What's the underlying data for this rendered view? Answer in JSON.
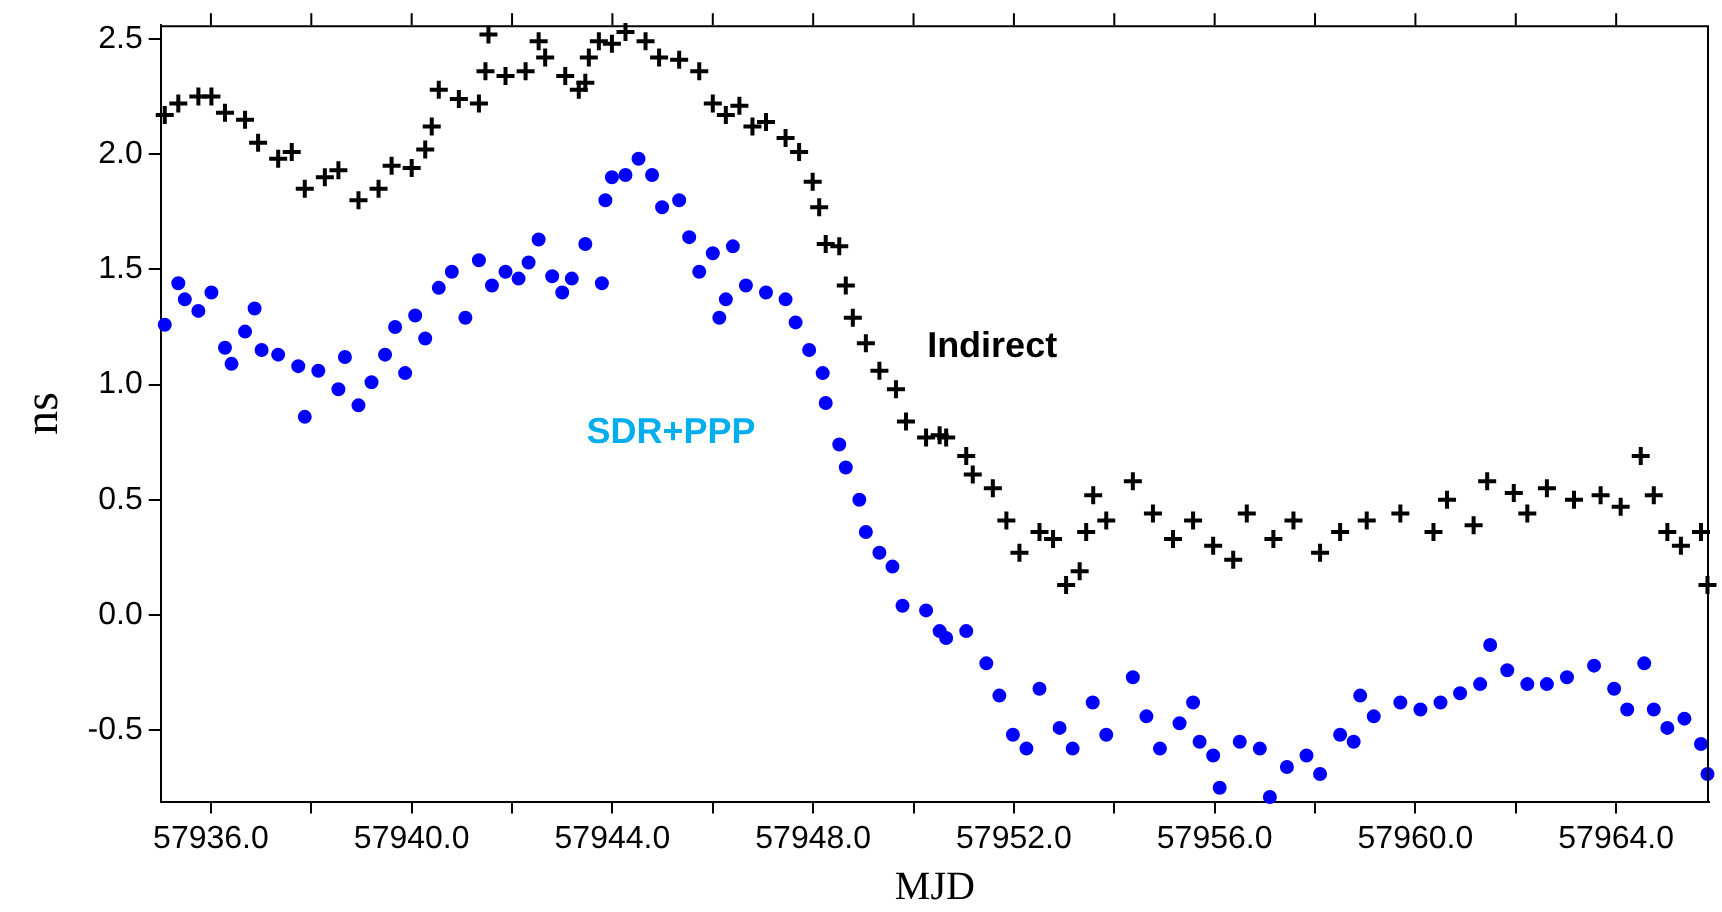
{
  "chart_data": {
    "type": "scatter",
    "xlabel": "MJD",
    "ylabel": "ns",
    "legend": false,
    "grid": false,
    "xlim": [
      57935,
      57965.85
    ],
    "ylim": [
      -0.81,
      2.56
    ],
    "xticks": [
      {
        "value": 57936,
        "label": "57936.0"
      },
      {
        "value": 57938,
        "label": null
      },
      {
        "value": 57940,
        "label": "57940.0"
      },
      {
        "value": 57942,
        "label": null
      },
      {
        "value": 57944,
        "label": "57944.0"
      },
      {
        "value": 57946,
        "label": null
      },
      {
        "value": 57948,
        "label": "57948.0"
      },
      {
        "value": 57950,
        "label": null
      },
      {
        "value": 57952,
        "label": "57952.0"
      },
      {
        "value": 57954,
        "label": null
      },
      {
        "value": 57956,
        "label": "57956.0"
      },
      {
        "value": 57958,
        "label": null
      },
      {
        "value": 57960,
        "label": "57960.0"
      },
      {
        "value": 57962,
        "label": null
      },
      {
        "value": 57964,
        "label": "57964.0"
      }
    ],
    "yticks": [
      2.5,
      {
        "value": 2,
        "label": "2.0"
      },
      1.5,
      {
        "value": 1,
        "label": "1.0"
      },
      0.5,
      {
        "value": 0,
        "label": "0.0"
      },
      -0.5
    ],
    "series": [
      {
        "name": "Indirect",
        "color": "#000000",
        "marker": "cross",
        "x": [
          57935.08,
          57935.35,
          57935.75,
          57936.01,
          57936.28,
          57936.68,
          57936.94,
          57937.34,
          57937.61,
          57937.87,
          57938.27,
          57938.54,
          57938.94,
          57939.34,
          57939.6,
          57940,
          57940.27,
          57940.4,
          57940.54,
          57940.94,
          57941.34,
          57941.47,
          57941.53,
          57941.87,
          57942.27,
          57942.53,
          57942.66,
          57943.06,
          57943.33,
          57943.46,
          57943.53,
          57943.73,
          57943.99,
          57944.26,
          57944.66,
          57944.93,
          57945.33,
          57945.73,
          57946,
          57946.26,
          57946.53,
          57946.79,
          57947.06,
          57947.45,
          57947.72,
          57947.99,
          57948.12,
          57948.25,
          57948.52,
          57948.65,
          57948.79,
          57949.05,
          57949.32,
          57949.65,
          57949.85,
          57950.25,
          57950.52,
          57950.65,
          57951.05,
          57951.18,
          57951.58,
          57951.85,
          57952.11,
          57952.51,
          57952.78,
          57953.04,
          57953.31,
          57953.44,
          57953.58,
          57953.84,
          57954.37,
          57954.77,
          57955.17,
          57955.57,
          57955.97,
          57956.37,
          57956.64,
          57957.17,
          57957.57,
          57958.1,
          57958.5,
          57959.03,
          57959.7,
          57960.36,
          57960.63,
          57961.16,
          57961.43,
          57961.96,
          57962.23,
          57962.62,
          57963.16,
          57963.69,
          57964.09,
          57964.49,
          57964.75,
          57965.02,
          57965.29,
          57965.69,
          57965.82
        ],
        "values": [
          2.17,
          2.22,
          2.25,
          2.25,
          2.18,
          2.15,
          2.05,
          1.98,
          2.01,
          1.85,
          1.9,
          1.93,
          1.8,
          1.85,
          1.95,
          1.94,
          2.02,
          2.12,
          2.28,
          2.24,
          2.22,
          2.36,
          2.52,
          2.34,
          2.36,
          2.49,
          2.42,
          2.34,
          2.28,
          2.31,
          2.42,
          2.49,
          2.48,
          2.53,
          2.49,
          2.42,
          2.41,
          2.36,
          2.22,
          2.17,
          2.21,
          2.12,
          2.14,
          2.07,
          2.01,
          1.88,
          1.77,
          1.61,
          1.6,
          1.43,
          1.29,
          1.18,
          1.06,
          0.98,
          0.84,
          0.77,
          0.78,
          0.77,
          0.69,
          0.61,
          0.55,
          0.41,
          0.27,
          0.36,
          0.33,
          0.13,
          0.19,
          0.36,
          0.52,
          0.41,
          0.58,
          0.44,
          0.33,
          0.41,
          0.3,
          0.24,
          0.44,
          0.33,
          0.41,
          0.27,
          0.36,
          0.41,
          0.44,
          0.36,
          0.5,
          0.39,
          0.58,
          0.53,
          0.44,
          0.55,
          0.5,
          0.52,
          0.47,
          0.69,
          0.52,
          0.36,
          0.3,
          0.36,
          0.13
        ]
      },
      {
        "name": "SDR+PPP",
        "color": "#0000ff",
        "marker": "circle",
        "x": [
          57935.08,
          57935.35,
          57935.48,
          57935.75,
          57936.01,
          57936.28,
          57936.41,
          57936.68,
          57936.87,
          57937.01,
          57937.34,
          57937.74,
          57937.87,
          57938.14,
          57938.54,
          57938.67,
          57938.94,
          57939.2,
          57939.47,
          57939.67,
          57939.87,
          57940.07,
          57940.27,
          57940.54,
          57940.8,
          57941.07,
          57941.34,
          57941.6,
          57941.87,
          57942.13,
          57942.33,
          57942.53,
          57942.8,
          57943,
          57943.19,
          57943.46,
          57943.79,
          57943.86,
          57943.99,
          57944.26,
          57944.52,
          57944.79,
          57944.99,
          57945.33,
          57945.53,
          57945.73,
          57946,
          57946.13,
          57946.26,
          57946.4,
          57946.66,
          57947.06,
          57947.45,
          57947.65,
          57947.92,
          57948.19,
          57948.25,
          57948.52,
          57948.65,
          57948.92,
          57949.05,
          57949.32,
          57949.58,
          57949.78,
          57950.25,
          57950.52,
          57950.65,
          57951.05,
          57951.45,
          57951.71,
          57951.98,
          57952.25,
          57952.51,
          57952.91,
          57953.17,
          57953.57,
          57953.84,
          57954.37,
          57954.64,
          57954.91,
          57955.3,
          57955.57,
          57955.7,
          57955.97,
          57956.1,
          57956.5,
          57956.9,
          57957.1,
          57957.44,
          57957.83,
          57958.1,
          57958.5,
          57958.77,
          57958.9,
          57959.17,
          57959.7,
          57960.1,
          57960.5,
          57960.89,
          57961.29,
          57961.49,
          57961.83,
          57962.23,
          57962.62,
          57963.02,
          57963.56,
          57963.96,
          57964.22,
          57964.56,
          57964.75,
          57965.02,
          57965.36,
          57965.69,
          57965.82
        ],
        "values": [
          1.26,
          1.44,
          1.37,
          1.32,
          1.4,
          1.16,
          1.09,
          1.23,
          1.33,
          1.15,
          1.13,
          1.08,
          0.86,
          1.06,
          0.98,
          1.12,
          0.91,
          1.01,
          1.13,
          1.25,
          1.05,
          1.3,
          1.2,
          1.42,
          1.49,
          1.29,
          1.54,
          1.43,
          1.49,
          1.46,
          1.53,
          1.63,
          1.47,
          1.4,
          1.46,
          1.61,
          1.44,
          1.8,
          1.9,
          1.91,
          1.98,
          1.91,
          1.77,
          1.8,
          1.64,
          1.49,
          1.57,
          1.29,
          1.37,
          1.6,
          1.43,
          1.4,
          1.37,
          1.27,
          1.15,
          1.05,
          0.92,
          0.74,
          0.64,
          0.5,
          0.36,
          0.27,
          0.21,
          0.04,
          0.02,
          -0.07,
          -0.1,
          -0.07,
          -0.21,
          -0.35,
          -0.52,
          -0.58,
          -0.32,
          -0.49,
          -0.58,
          -0.38,
          -0.52,
          -0.27,
          -0.44,
          -0.58,
          -0.47,
          -0.38,
          -0.55,
          -0.61,
          -0.75,
          -0.55,
          -0.58,
          -0.79,
          -0.66,
          -0.61,
          -0.69,
          -0.52,
          -0.55,
          -0.35,
          -0.44,
          -0.38,
          -0.41,
          -0.38,
          -0.34,
          -0.3,
          -0.13,
          -0.24,
          -0.3,
          -0.3,
          -0.27,
          -0.22,
          -0.32,
          -0.41,
          -0.21,
          -0.41,
          -0.49,
          -0.45,
          -0.56,
          -0.69
        ]
      }
    ]
  }
}
